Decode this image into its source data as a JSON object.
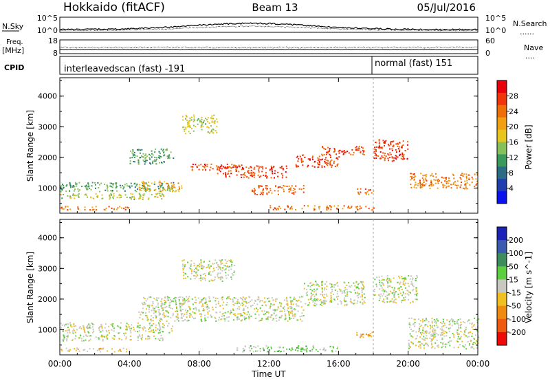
{
  "header": {
    "station": "Hokkaido (fitACF)",
    "beam": "Beam 13",
    "date": "05/Jul/2016"
  },
  "noise_panel": {
    "left_label": "N.Sky",
    "right_label": "N.Search",
    "right_key": "......",
    "left_ticks": [
      "10^5",
      "10^0"
    ],
    "right_ticks": [
      "10^5",
      "10^0"
    ]
  },
  "freq_panel": {
    "left_label_1": "Freq.",
    "left_label_2": "[MHz]",
    "right_label": "Nave",
    "right_key": "....",
    "left_ticks": [
      "18",
      "8"
    ],
    "right_ticks": [
      "60",
      "0"
    ]
  },
  "cpid_panel": {
    "label": "CPID",
    "mode_1": "interleavedscan (fast) -191",
    "mode_2": "normal (fast) 151"
  },
  "power_colorbar": {
    "title": "Power [dB]",
    "ticks": [
      "28",
      "24",
      "20",
      "16",
      "12",
      "8",
      "4"
    ],
    "colors": [
      "#e8000b",
      "#f0350a",
      "#f06e08",
      "#f0a010",
      "#e8c51b",
      "#86c05a",
      "#3a9a5c",
      "#2a6c84",
      "#1f3fb0",
      "#0a12f0"
    ]
  },
  "velocity_colorbar": {
    "title": "Velocity [m s^-1]",
    "ticks": [
      "200",
      "100",
      "50",
      "15",
      "-15",
      "-50",
      "-100",
      "-200"
    ],
    "colors": [
      "#1a22b8",
      "#3a5ab0",
      "#3d8c5c",
      "#5ccf3f",
      "#c8c8c0",
      "#f0c020",
      "#f08a10",
      "#f05a10",
      "#ee0a0a"
    ]
  },
  "chart_data": [
    {
      "type": "heatmap",
      "title": "",
      "xlabel": "Time UT",
      "ylabel": "Slant Range [km]",
      "x_ticks": [
        "00:00",
        "04:00",
        "08:00",
        "12:00",
        "16:00",
        "20:00",
        "00:00"
      ],
      "xlim_hours": [
        0,
        24
      ],
      "y_ticks": [
        "1000",
        "2000",
        "3000",
        "4000"
      ],
      "ylim_km": [
        180,
        4600
      ],
      "value_label": "Power [dB]",
      "vlim": [
        0,
        32
      ],
      "regions": [
        {
          "t0": 0.0,
          "t1": 6.5,
          "r0": 900,
          "r1": 1200,
          "value": 12
        },
        {
          "t0": 0.0,
          "t1": 6.0,
          "r0": 650,
          "r1": 850,
          "value": 16
        },
        {
          "t0": 0.0,
          "t1": 4.0,
          "r0": 300,
          "r1": 420,
          "value": 24
        },
        {
          "t0": 4.5,
          "t1": 7.0,
          "r0": 900,
          "r1": 1250,
          "value": 20
        },
        {
          "t0": 7.5,
          "t1": 10.5,
          "r0": 1600,
          "r1": 1800,
          "value": 28
        },
        {
          "t0": 9.0,
          "t1": 13.0,
          "r0": 1350,
          "r1": 1750,
          "value": 28
        },
        {
          "t0": 11.0,
          "t1": 14.0,
          "r0": 800,
          "r1": 1100,
          "value": 26
        },
        {
          "t0": 13.5,
          "t1": 16.0,
          "r0": 1700,
          "r1": 2100,
          "value": 28
        },
        {
          "t0": 15.0,
          "t1": 17.5,
          "r0": 2100,
          "r1": 2400,
          "value": 28
        },
        {
          "t0": 17.0,
          "t1": 18.0,
          "r0": 800,
          "r1": 1000,
          "value": 24
        },
        {
          "t0": 18.0,
          "t1": 20.0,
          "r0": 1900,
          "r1": 2600,
          "value": 28
        },
        {
          "t0": 20.0,
          "t1": 24.0,
          "r0": 1000,
          "r1": 1500,
          "value": 24
        },
        {
          "t0": 12.0,
          "t1": 18.0,
          "r0": 300,
          "r1": 450,
          "value": 24
        },
        {
          "t0": 7.0,
          "t1": 9.0,
          "r0": 2800,
          "r1": 3400,
          "value": 16
        },
        {
          "t0": 4.0,
          "t1": 6.5,
          "r0": 1800,
          "r1": 2300,
          "value": 12
        }
      ]
    },
    {
      "type": "heatmap",
      "title": "",
      "xlabel": "Time UT",
      "ylabel": "Slant Range [km]",
      "x_ticks": [
        "00:00",
        "04:00",
        "08:00",
        "12:00",
        "16:00",
        "20:00",
        "00:00"
      ],
      "xlim_hours": [
        0,
        24
      ],
      "y_ticks": [
        "1000",
        "2000",
        "3000",
        "4000"
      ],
      "ylim_km": [
        180,
        4600
      ],
      "value_label": "Velocity [m s^-1]",
      "vlim": [
        -200,
        200
      ],
      "regions": [
        {
          "t0": 0.0,
          "t1": 4.0,
          "r0": 300,
          "r1": 420,
          "value": -40
        },
        {
          "t0": 0.0,
          "t1": 6.5,
          "r0": 900,
          "r1": 1250,
          "value": 0
        },
        {
          "t0": 4.5,
          "t1": 14.0,
          "r0": 1300,
          "r1": 2100,
          "value": 0
        },
        {
          "t0": 10.0,
          "t1": 16.0,
          "r0": 300,
          "r1": 500,
          "value": 40
        },
        {
          "t0": 14.0,
          "t1": 17.5,
          "r0": 1800,
          "r1": 2600,
          "value": 0
        },
        {
          "t0": 17.0,
          "t1": 18.0,
          "r0": 750,
          "r1": 950,
          "value": -70
        },
        {
          "t0": 18.0,
          "t1": 20.5,
          "r0": 1900,
          "r1": 2800,
          "value": 0
        },
        {
          "t0": 20.0,
          "t1": 24.0,
          "r0": 400,
          "r1": 1400,
          "value": 0
        },
        {
          "t0": 7.0,
          "t1": 10.0,
          "r0": 2600,
          "r1": 3300,
          "value": 0
        },
        {
          "t0": 0.0,
          "t1": 6.0,
          "r0": 650,
          "r1": 850,
          "value": 0
        }
      ]
    }
  ]
}
